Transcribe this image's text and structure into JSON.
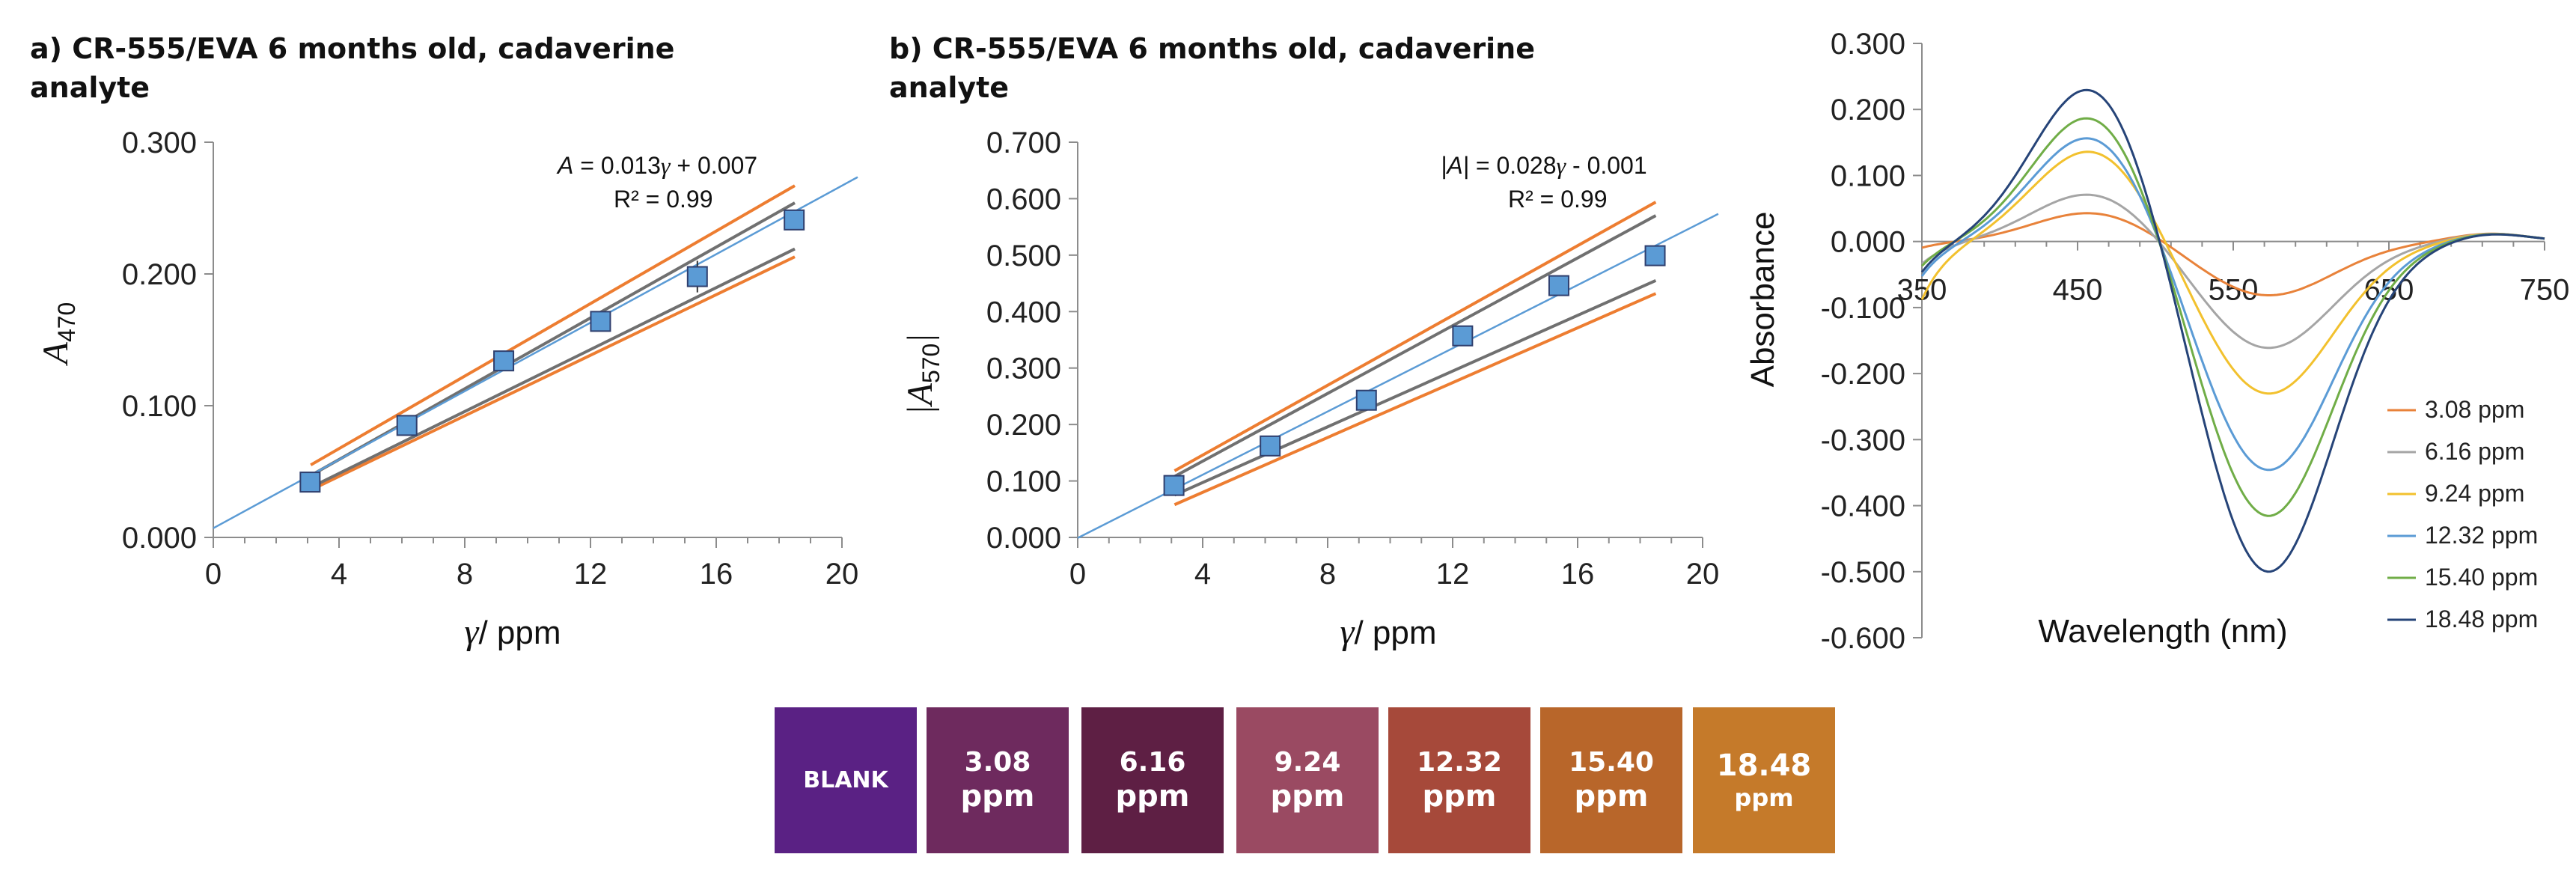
{
  "chart_data": [
    {
      "type": "scatter",
      "panel": "a",
      "title": "a) CR-555/EVA 6 months old, cadaverine analyte",
      "title_lines": [
        "a) CR-555/EVA 6 months old, cadaverine",
        "analyte"
      ],
      "xlabel_symbol": "γ",
      "xlabel_unit": "/ ppm",
      "ylabel": "A",
      "ylabel_sub": "470",
      "xlim": [
        0,
        20
      ],
      "ylim": [
        0,
        0.3
      ],
      "xticks": [
        0,
        4,
        8,
        12,
        16,
        20
      ],
      "yticks": [
        0.0,
        0.1,
        0.2,
        0.3
      ],
      "ytick_labels": [
        "0.000",
        "0.100",
        "0.200",
        "0.300"
      ],
      "x": [
        3.08,
        6.16,
        9.24,
        12.32,
        15.4,
        18.48
      ],
      "y": [
        0.042,
        0.085,
        0.134,
        0.164,
        0.198,
        0.241
      ],
      "yerr": [
        0.004,
        0.004,
        0.004,
        0.003,
        0.012,
        0.006
      ],
      "fit": {
        "slope": 0.013,
        "intercept": 0.007,
        "x_range": [
          0,
          20.5
        ]
      },
      "confidence_lines": [
        [
          3.1,
          0.047,
          18.5,
          0.254
        ],
        [
          3.1,
          0.038,
          18.5,
          0.219
        ]
      ],
      "prediction_lines": [
        [
          3.1,
          0.055,
          18.5,
          0.267
        ],
        [
          3.1,
          0.036,
          18.5,
          0.213
        ]
      ],
      "equation": {
        "lead": "A",
        "mid": " = 0.013",
        "var": "γ",
        "tail": " + 0.007"
      },
      "r2_label": "R² = 0.99",
      "r2": 0.99
    },
    {
      "type": "scatter",
      "panel": "b",
      "title": "b) CR-555/EVA 6 months old, cadaverine analyte",
      "title_lines": [
        "b) CR-555/EVA 6 months old, cadaverine",
        "analyte"
      ],
      "xlabel_symbol": "γ",
      "xlabel_unit": "/ ppm",
      "ylabel": "|A",
      "ylabel_sub": "570",
      "ylabel_tail": "|",
      "xlim": [
        0,
        20
      ],
      "ylim": [
        0,
        0.7
      ],
      "xticks": [
        0,
        4,
        8,
        12,
        16,
        20
      ],
      "yticks": [
        0.0,
        0.1,
        0.2,
        0.3,
        0.4,
        0.5,
        0.6,
        0.7
      ],
      "ytick_labels": [
        "0.000",
        "0.100",
        "0.200",
        "0.300",
        "0.400",
        "0.500",
        "0.600",
        "0.700"
      ],
      "x": [
        3.08,
        6.16,
        9.24,
        12.32,
        15.4,
        18.48
      ],
      "y": [
        0.092,
        0.162,
        0.243,
        0.357,
        0.446,
        0.499
      ],
      "yerr": [
        0.008,
        0.01,
        0.01,
        0.012,
        0.018,
        0.01
      ],
      "fit": {
        "slope": 0.028,
        "intercept": -0.001,
        "x_range": [
          0,
          20.5
        ]
      },
      "confidence_lines": [
        [
          3.1,
          0.108,
          18.5,
          0.57
        ],
        [
          3.1,
          0.075,
          18.5,
          0.455
        ]
      ],
      "prediction_lines": [
        [
          3.1,
          0.118,
          18.5,
          0.594
        ],
        [
          3.1,
          0.058,
          18.5,
          0.432
        ]
      ],
      "equation": {
        "lead": "|A|",
        "mid": " = 0.028",
        "var": "γ",
        "tail": " - 0.001"
      },
      "r2_label": "R² = 0.99",
      "r2": 0.99
    },
    {
      "type": "line",
      "panel": "c",
      "xlabel": "Wavelength (nm)",
      "ylabel": "Absorbance",
      "xlim": [
        350,
        750
      ],
      "ylim": [
        -0.6,
        0.3
      ],
      "xticks": [
        350,
        450,
        550,
        650,
        750
      ],
      "yticks": [
        0.3,
        0.2,
        0.1,
        0.0,
        -0.1,
        -0.2,
        -0.3,
        -0.4,
        -0.5,
        -0.6
      ],
      "ytick_labels": [
        "0.300",
        "0.200",
        "0.100",
        "0.000",
        "-0.100",
        "-0.200",
        "-0.300",
        "-0.400",
        "-0.500",
        "-0.600"
      ],
      "series": [
        {
          "name": "3.08 ppm",
          "color": "#e8823a",
          "peak": 0.045,
          "trough": -0.082,
          "low_start": -0.01
        },
        {
          "name": "6.16 ppm",
          "color": "#a5a5a5",
          "peak": 0.075,
          "trough": -0.162,
          "low_start": -0.035
        },
        {
          "name": "9.24 ppm",
          "color": "#f2c12e",
          "peak": 0.142,
          "trough": -0.232,
          "low_start": -0.09
        },
        {
          "name": "12.32 ppm",
          "color": "#5b9bd5",
          "peak": 0.165,
          "trough": -0.348,
          "low_start": -0.055
        },
        {
          "name": "15.40 ppm",
          "color": "#70ad47",
          "peak": 0.197,
          "trough": -0.418,
          "low_start": -0.04
        },
        {
          "name": "18.48 ppm",
          "color": "#264478",
          "peak": 0.242,
          "trough": -0.503,
          "low_start": -0.05
        }
      ]
    }
  ],
  "swatches": [
    {
      "line1": "BLANK",
      "line2": "",
      "color": "#5a2184"
    },
    {
      "line1": "3.08",
      "line2": "ppm",
      "color": "#6e2a5e"
    },
    {
      "line1": "6.16",
      "line2": "ppm",
      "color": "#5e1f44"
    },
    {
      "line1": "9.24",
      "line2": "ppm",
      "color": "#9a4a62"
    },
    {
      "line1": "12.32",
      "line2": "ppm",
      "color": "#a6493a"
    },
    {
      "line1": "15.40",
      "line2": "ppm",
      "color": "#b8662a"
    },
    {
      "line1": "18.48",
      "line2": "ppm",
      "color": "#c57a2a"
    }
  ],
  "colors": {
    "points": "#5b9bd5",
    "point_edge": "#2f3f6e",
    "fit": "#5b9bd5",
    "confidence": "#707070",
    "prediction": "#ed7d31",
    "axis": "#8c8c8c"
  }
}
